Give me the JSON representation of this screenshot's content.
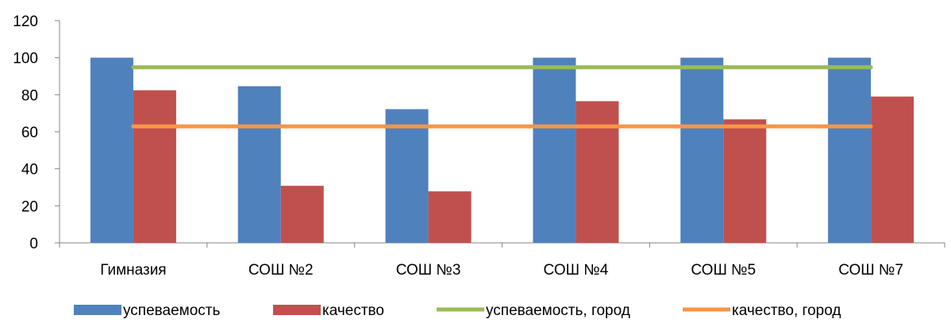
{
  "chart_data": {
    "type": "bar",
    "title": "",
    "xlabel": "",
    "ylabel": "",
    "ylim": [
      0,
      120
    ],
    "yticks": [
      0,
      20,
      40,
      60,
      80,
      100,
      120
    ],
    "grid": false,
    "legend_position": "bottom",
    "categories": [
      "Гимназия",
      "СОШ №2",
      "СОШ №3",
      "СОШ №4",
      "СОШ №5",
      "СОШ №7"
    ],
    "series": [
      {
        "name": "успеваемость",
        "kind": "bar",
        "color": "#4F81BD",
        "values": [
          100,
          84.6,
          72.2,
          100,
          100,
          100
        ]
      },
      {
        "name": "качество",
        "kind": "bar",
        "color": "#C0504D",
        "values": [
          82.4,
          30.8,
          27.8,
          76.5,
          66.7,
          79.0
        ]
      },
      {
        "name": "успеваемость, город",
        "kind": "line",
        "color": "#9BBB59",
        "values": [
          94.8,
          94.8,
          94.8,
          94.8,
          94.8,
          94.8
        ]
      },
      {
        "name": "качество, город",
        "kind": "line",
        "color": "#F79646",
        "values": [
          62.9,
          62.9,
          62.9,
          62.9,
          62.9,
          62.9
        ]
      }
    ]
  }
}
